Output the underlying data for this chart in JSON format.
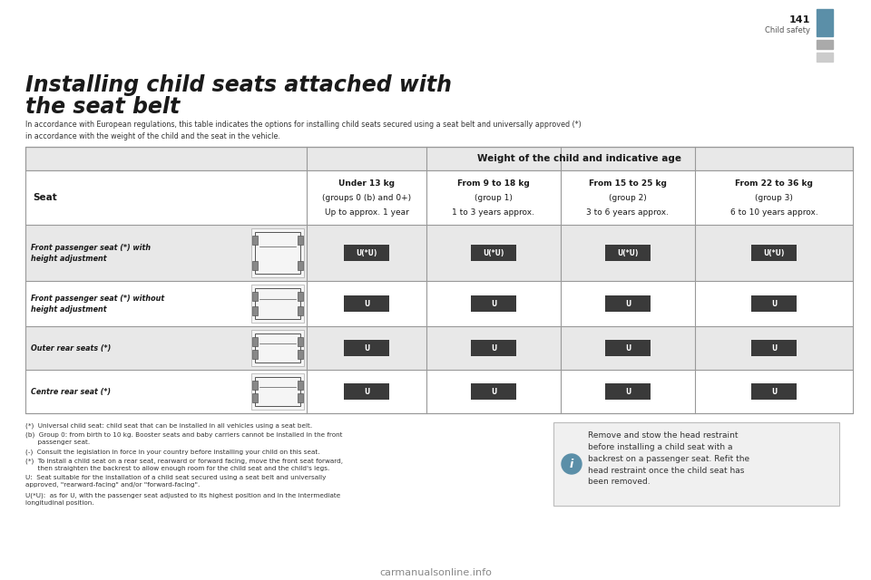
{
  "page_bg": "#ffffff",
  "page_num": "141",
  "page_label": "Child safety",
  "header_blue": "#5b8fa8",
  "sidebar_gray1": "#aaaaaa",
  "sidebar_gray2": "#cccccc",
  "title_line1": "Installing child seats attached with",
  "title_line2": "the seat belt",
  "subtitle": "In accordance with European regulations, this table indicates the options for installing child seats secured using a seat belt and universally approved (*)\nin accordance with the weight of the child and the seat in the vehicle.",
  "table_header": "Weight of the child and indicative age",
  "col_headers": [
    "Seat",
    "Under 13 kg\n(groups 0 (b) and 0+)\nUp to approx. 1 year",
    "From 9 to 18 kg\n(group 1)\n1 to 3 years approx.",
    "From 15 to 25 kg\n(group 2)\n3 to 6 years approx.",
    "From 22 to 36 kg\n(group 3)\n6 to 10 years approx."
  ],
  "row_labels": [
    "Front passenger seat (*) with\nheight adjustment",
    "Front passenger seat (*) without\nheight adjustment",
    "Outer rear seats (*)",
    "Centre rear seat (*)"
  ],
  "row0_symbols": [
    "U(*U)",
    "U(*U)",
    "U(*U)",
    "U(*U)"
  ],
  "row1_symbols": [
    "U",
    "U",
    "U",
    "U"
  ],
  "row2_symbols": [
    "U",
    "U",
    "U",
    "U"
  ],
  "row3_symbols": [
    "U",
    "U",
    "U",
    "U"
  ],
  "footnotes": [
    "(*) Universal child seat: child seat that can be installed in all vehicles using a seat belt.",
    "(b) Group 0: from birth to 10 kg. Booster seats and baby carriers cannot be installed in the front\n    passenger seat.",
    "(-) Consult the legislation in force in your country before installing your child on this seat.",
    "(*) To install a child seat on a rear seat, rearward or forward facing, move the front seat forward,\n    then straighten the backrest to allow enough room for the child seat and the child's legs.",
    "U: Seat suitable for the installation of a child seat secured using a seat belt and universally\napproved, \"rearward-facing\" and/or \"forward-facing\".",
    "U(*U): as for U, with the passenger seat adjusted to its highest position and in the intermediate\nlongitudinal position."
  ],
  "info_box_text": "Remove and stow the head restraint\nbefore installing a child seat with a\nbackrest on a passenger seat. Refit the\nhead restraint once the child seat has\nbeen removed.",
  "table_border": "#999999",
  "table_outer_bg": "#e8e8e8",
  "table_header1_bg": "#e8e8e8",
  "table_header2_bg": "#ffffff",
  "row_odd_bg": "#e8e8e8",
  "row_even_bg": "#ffffff",
  "text_color": "#333333",
  "title_color": "#1a1a1a",
  "header_text_color": "#1a1a1a",
  "symbol_box_bg": "#404040",
  "symbol_text_color": "#ffffff",
  "symbol_u_bg": "#404040",
  "info_box_bg": "#f0f0f0",
  "info_box_border": "#bbbbbb"
}
